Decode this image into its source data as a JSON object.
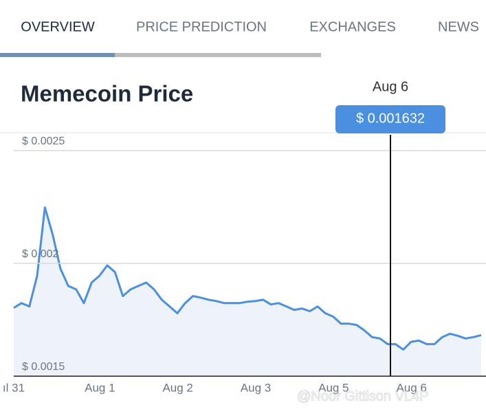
{
  "tabs": [
    "OVERVIEW",
    "PRICE PREDICTION",
    "EXCHANGES",
    "NEWS"
  ],
  "title": "Memecoin Price",
  "watermark": "@Noor Gittison VL4P",
  "chart_data": {
    "type": "line",
    "cursor_label": "Aug 6",
    "tooltip": "$ 0.001632",
    "categories": [
      "ıl 31",
      null,
      null,
      null,
      null,
      null,
      null,
      null,
      null,
      null,
      "Aug 1",
      null,
      null,
      null,
      null,
      null,
      null,
      null,
      null,
      null,
      "Aug 2",
      null,
      null,
      null,
      null,
      null,
      null,
      null,
      null,
      null,
      "Aug 3",
      null,
      null,
      null,
      null,
      null,
      null,
      null,
      null,
      null,
      "Aug 5",
      null,
      null,
      null,
      null,
      null,
      null,
      null,
      null,
      null,
      "Aug 6",
      null,
      null,
      null,
      null,
      null,
      null,
      null,
      null,
      null,
      null
    ],
    "series": [
      {
        "color": "#4a8fe0",
        "fill": "#eef3fa",
        "values": [
          0.001803,
          0.001824,
          0.001809,
          0.001945,
          0.002248,
          0.002127,
          0.001976,
          0.0019,
          0.001885,
          0.001824,
          0.001915,
          0.001945,
          0.001991,
          0.001961,
          0.001855,
          0.001885,
          0.0019,
          0.001915,
          0.001885,
          0.001839,
          0.001809,
          0.001779,
          0.001824,
          0.001855,
          0.001848,
          0.001839,
          0.001833,
          0.001824,
          0.001824,
          0.001824,
          0.00183,
          0.001833,
          0.001839,
          0.001818,
          0.001824,
          0.001809,
          0.001794,
          0.0018,
          0.001788,
          0.001809,
          0.001779,
          0.001764,
          0.001733,
          0.001733,
          0.001727,
          0.001703,
          0.001673,
          0.001667,
          0.001642,
          0.001642,
          0.001618,
          0.001652,
          0.001658,
          0.001642,
          0.001642,
          0.001673,
          0.001688,
          0.001679,
          0.001667,
          0.001673,
          0.001682
        ]
      }
    ],
    "ylim": [
      0.0015,
      0.00257
    ],
    "yticks": [
      {
        "value": 0.0015,
        "label": "$ 0.0015"
      },
      {
        "value": 0.002,
        "label": "$ 0.002"
      },
      {
        "value": 0.0025,
        "label": "$ 0.0025"
      }
    ],
    "grid": true
  }
}
